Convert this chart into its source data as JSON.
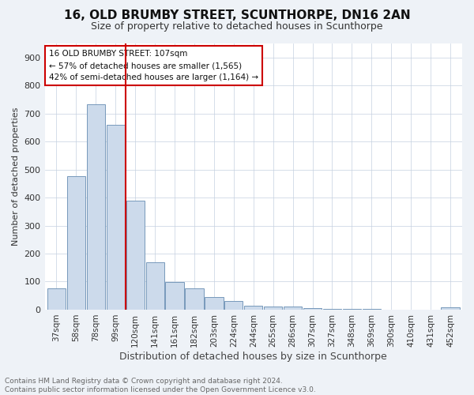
{
  "title": "16, OLD BRUMBY STREET, SCUNTHORPE, DN16 2AN",
  "subtitle": "Size of property relative to detached houses in Scunthorpe",
  "xlabel": "Distribution of detached houses by size in Scunthorpe",
  "ylabel": "Number of detached properties",
  "categories": [
    "37sqm",
    "58sqm",
    "78sqm",
    "99sqm",
    "120sqm",
    "141sqm",
    "161sqm",
    "182sqm",
    "203sqm",
    "224sqm",
    "244sqm",
    "265sqm",
    "286sqm",
    "307sqm",
    "327sqm",
    "348sqm",
    "369sqm",
    "390sqm",
    "410sqm",
    "431sqm",
    "452sqm"
  ],
  "values": [
    75,
    475,
    733,
    660,
    390,
    170,
    98,
    75,
    45,
    30,
    15,
    12,
    10,
    5,
    4,
    3,
    2,
    1,
    0,
    0,
    8
  ],
  "bar_color": "#ccdaeb",
  "bar_edge_color": "#7799bb",
  "vline_x_index": 3,
  "vline_color": "#cc0000",
  "annotation_line1": "16 OLD BRUMBY STREET: 107sqm",
  "annotation_line2": "← 57% of detached houses are smaller (1,565)",
  "annotation_line3": "42% of semi-detached houses are larger (1,164) →",
  "annotation_box_color": "#ffffff",
  "annotation_border_color": "#cc0000",
  "footer_text": "Contains HM Land Registry data © Crown copyright and database right 2024.\nContains public sector information licensed under the Open Government Licence v3.0.",
  "ylim": [
    0,
    950
  ],
  "yticks": [
    0,
    100,
    200,
    300,
    400,
    500,
    600,
    700,
    800,
    900
  ],
  "background_color": "#eef2f7",
  "plot_background": "#ffffff",
  "grid_color": "#c5d0e0",
  "title_fontsize": 11,
  "subtitle_fontsize": 9,
  "ylabel_fontsize": 8,
  "xlabel_fontsize": 9,
  "tick_fontsize": 8,
  "xtick_fontsize": 7.5,
  "footer_fontsize": 6.5
}
